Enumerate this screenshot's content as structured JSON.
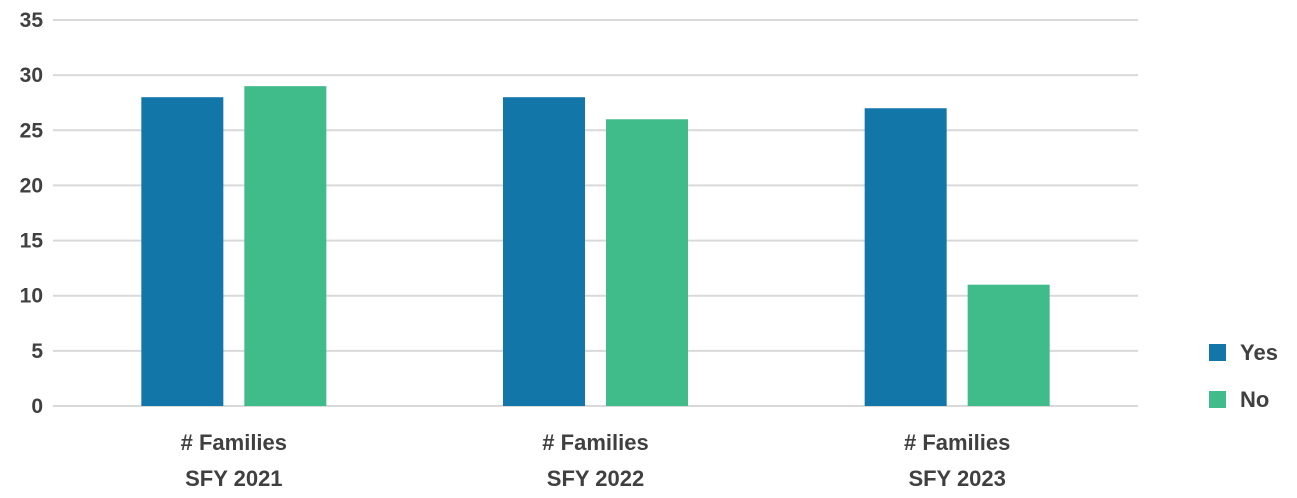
{
  "chart_data": {
    "type": "bar",
    "categories": [
      [
        "# Families",
        "SFY 2021"
      ],
      [
        "# Families",
        "SFY 2022"
      ],
      [
        "# Families",
        "SFY 2023"
      ]
    ],
    "series": [
      {
        "name": "Yes",
        "color": "#1277a8",
        "values": [
          28,
          28,
          27
        ]
      },
      {
        "name": "No",
        "color": "#40bb8a",
        "values": [
          29,
          26,
          11
        ]
      }
    ],
    "ylim": [
      0,
      35
    ],
    "yticks": [
      0,
      5,
      10,
      15,
      20,
      25,
      30,
      35
    ],
    "grid": true,
    "legend_position": "bottom-right",
    "title": "",
    "xlabel": "",
    "ylabel": ""
  }
}
